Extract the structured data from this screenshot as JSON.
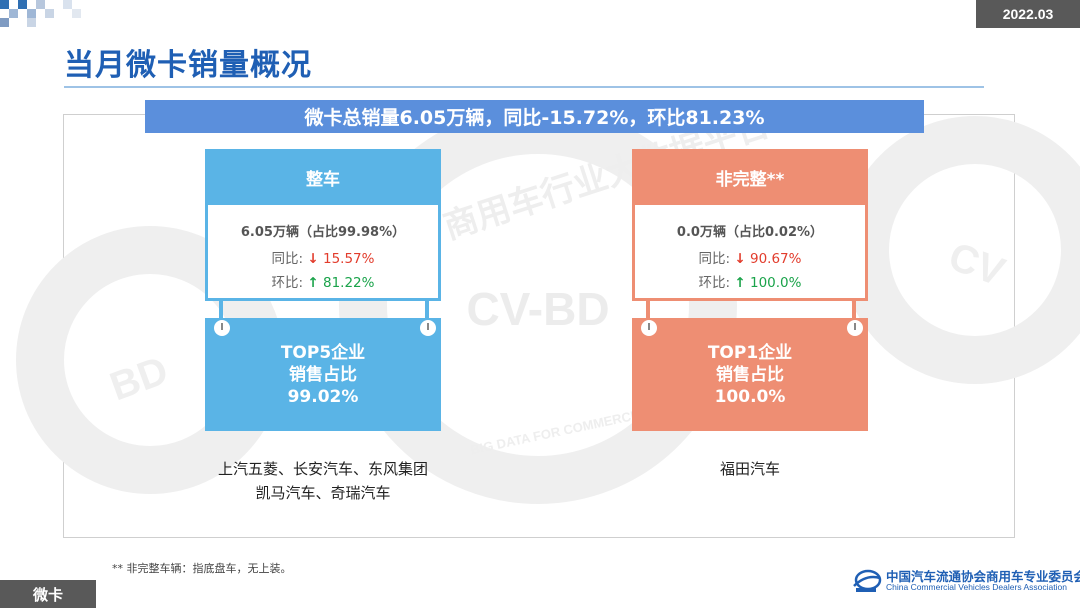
{
  "header": {
    "date": "2022.03",
    "title": "当月微卡销量概况"
  },
  "summary": {
    "text": "微卡总销量6.05万辆，同比-15.72%，环比81.23%"
  },
  "cards": {
    "complete": {
      "label": "整车",
      "sales_line": "6.05万辆（占比99.98%）",
      "yoy_label": "同比:",
      "yoy_arrow": "↓",
      "yoy_value": "15.57%",
      "mom_label": "环比:",
      "mom_arrow": "↑",
      "mom_value": "81.22%",
      "top_line1": "TOP5企业",
      "top_line2": "销售占比",
      "top_line3": "99.02%",
      "companies_line1": "上汽五菱、长安汽车、东风集团",
      "companies_line2": "凯马汽车、奇瑞汽车"
    },
    "incomplete": {
      "label": "非完整**",
      "sales_line": "0.0万辆（占比0.02%）",
      "yoy_label": "同比:",
      "yoy_arrow": "↓",
      "yoy_value": "90.67%",
      "mom_label": "环比:",
      "mom_arrow": "↑",
      "mom_value": "100.0%",
      "top_line1": "TOP1企业",
      "top_line2": "销售占比",
      "top_line3": "100.0%",
      "companies_line1": "福田汽车"
    }
  },
  "footnote": "** 非完整车辆：指底盘车，无上装。",
  "footer": {
    "tag": "微卡",
    "org_cn": "中国汽车流通协会商用车专业委员会",
    "org_en": "China Commercial Vehicles Dealers Association"
  },
  "watermark": {
    "text_center": "CV-BD",
    "text_ring_cn": "商用车行业大数据平台",
    "text_ring_en": "BIG DATA FOR COMMERCIAL VEHICLE",
    "text_left": "BD",
    "text_right": "CV"
  },
  "colors": {
    "blue_card": "#5ab4e6",
    "orange_card": "#ee8e73",
    "banner": "#5b8fdc",
    "title": "#1f5fb4"
  }
}
